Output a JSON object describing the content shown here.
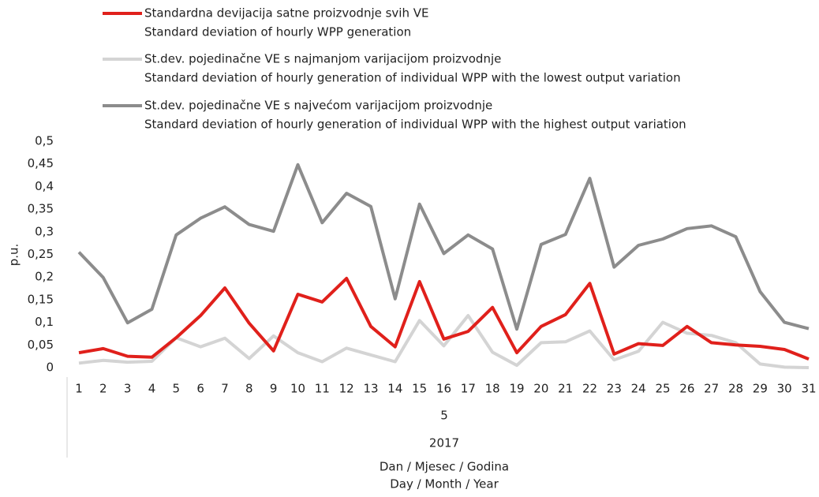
{
  "chart_data": {
    "type": "line",
    "y_label": "p.u.",
    "x_label": [
      "Dan / Mjesec / Godina",
      "Day / Month / Year"
    ],
    "month": "5",
    "year": "2017",
    "categories": [
      "1",
      "2",
      "3",
      "4",
      "5",
      "6",
      "7",
      "8",
      "9",
      "10",
      "11",
      "12",
      "13",
      "14",
      "15",
      "16",
      "17",
      "18",
      "19",
      "20",
      "21",
      "22",
      "23",
      "24",
      "25",
      "26",
      "27",
      "28",
      "29",
      "30",
      "31"
    ],
    "ylim": [
      0,
      0.5
    ],
    "yticks": [
      0,
      {
        "value": 0.05,
        "label": "0,05"
      },
      {
        "value": 0.1,
        "label": "0,1"
      },
      {
        "value": 0.15,
        "label": "0,15"
      },
      {
        "value": 0.2,
        "label": "0,2"
      },
      {
        "value": 0.25,
        "label": "0,25"
      },
      {
        "value": 0.3,
        "label": "0,3"
      },
      {
        "value": 0.35,
        "label": "0,35"
      },
      {
        "value": 0.4,
        "label": "0,4"
      },
      {
        "value": 0.45,
        "label": "0,45"
      },
      {
        "value": 0.5,
        "label": "0,5"
      }
    ],
    "series": [
      {
        "name": "Standardna devijacija satne proizvodnje svih VE",
        "name_en": "Standard deviation of hourly WPP generation",
        "color": "#e0201b",
        "values": [
          0.033,
          0.042,
          0.025,
          0.023,
          0.066,
          0.115,
          0.176,
          0.098,
          0.037,
          0.162,
          0.145,
          0.197,
          0.091,
          0.046,
          0.19,
          0.063,
          0.08,
          0.133,
          0.033,
          0.091,
          0.117,
          0.186,
          0.03,
          0.053,
          0.049,
          0.091,
          0.055,
          0.05,
          0.047,
          0.04,
          0.019
        ]
      },
      {
        "name": "St.dev. pojedinačne VE s najmanjom varijacijom proizvodnje",
        "name_en": "Standard deviation of hourly generation of individual WPP with the lowest output variation",
        "color": "#d4d4d4",
        "values": [
          0.01,
          0.016,
          0.012,
          0.014,
          0.066,
          0.046,
          0.065,
          0.02,
          0.07,
          0.033,
          0.013,
          0.043,
          0.028,
          0.013,
          0.104,
          0.048,
          0.115,
          0.034,
          0.005,
          0.055,
          0.057,
          0.081,
          0.017,
          0.036,
          0.1,
          0.076,
          0.071,
          0.055,
          0.008,
          0.001,
          0
        ]
      },
      {
        "name": "St.dev. pojedinačne VE s najvećom varijacijom proizvodnje",
        "name_en": "Standard deviation of hourly generation of individual WPP with the highest output variation",
        "color": "#8c8c8c",
        "values": [
          0.255,
          0.199,
          0.099,
          0.129,
          0.293,
          0.33,
          0.355,
          0.316,
          0.301,
          0.448,
          0.32,
          0.385,
          0.356,
          0.152,
          0.361,
          0.252,
          0.293,
          0.262,
          0.085,
          0.272,
          0.294,
          0.418,
          0.222,
          0.27,
          0.284,
          0.307,
          0.313,
          0.289,
          0.168,
          0.1,
          0.086
        ]
      }
    ]
  }
}
